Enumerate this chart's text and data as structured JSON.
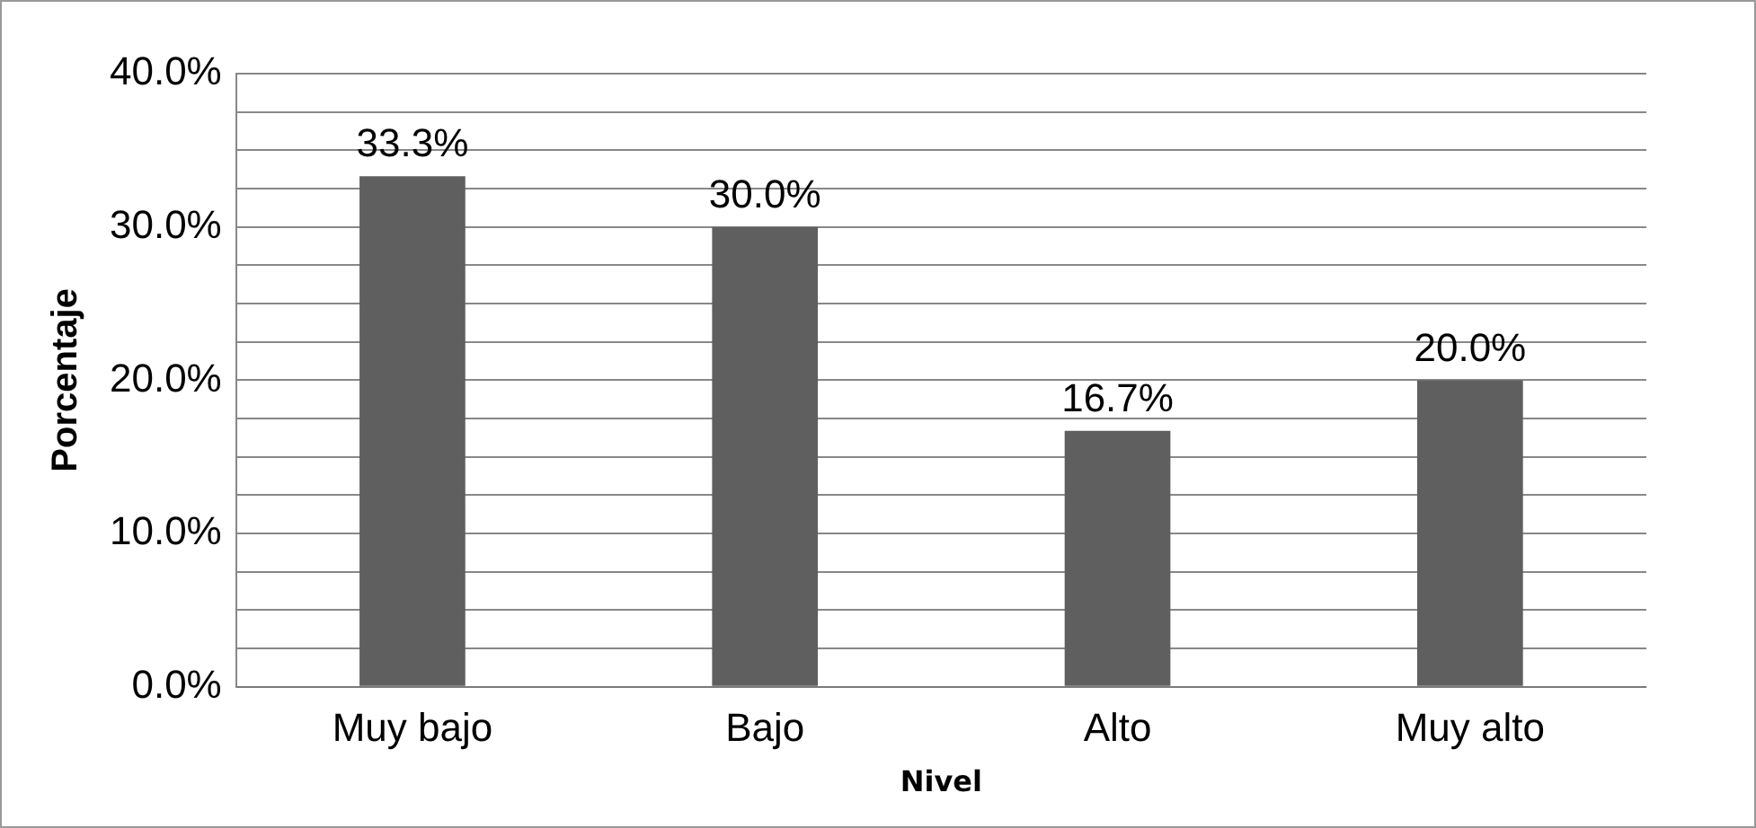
{
  "chart_data": {
    "type": "bar",
    "xlabel": "Nivel",
    "ylabel": "Porcentaje",
    "categories": [
      "Muy bajo",
      "Bajo",
      "Alto",
      "Muy alto"
    ],
    "values": [
      33.3,
      30.0,
      16.7,
      20.0
    ],
    "value_labels": [
      "33.3%",
      "30.0%",
      "16.7%",
      "20.0%"
    ],
    "color": "#5f5f5f",
    "ylim": [
      0,
      40
    ],
    "yticks": [
      {
        "value": 0,
        "label": "0.0%"
      },
      {
        "value": 2.5,
        "label": null
      },
      {
        "value": 5,
        "label": null
      },
      {
        "value": 7.5,
        "label": null
      },
      {
        "value": 10,
        "label": "10.0%"
      },
      {
        "value": 12.5,
        "label": null
      },
      {
        "value": 15,
        "label": null
      },
      {
        "value": 17.5,
        "label": null
      },
      {
        "value": 20,
        "label": "20.0%"
      },
      {
        "value": 22.5,
        "label": null
      },
      {
        "value": 25,
        "label": null
      },
      {
        "value": 27.5,
        "label": null
      },
      {
        "value": 30,
        "label": "30.0%"
      },
      {
        "value": 32.5,
        "label": null
      },
      {
        "value": 35,
        "label": null
      },
      {
        "value": 37.5,
        "label": null
      },
      {
        "value": 40,
        "label": "40.0%"
      }
    ],
    "grid": "y",
    "legend": false
  }
}
